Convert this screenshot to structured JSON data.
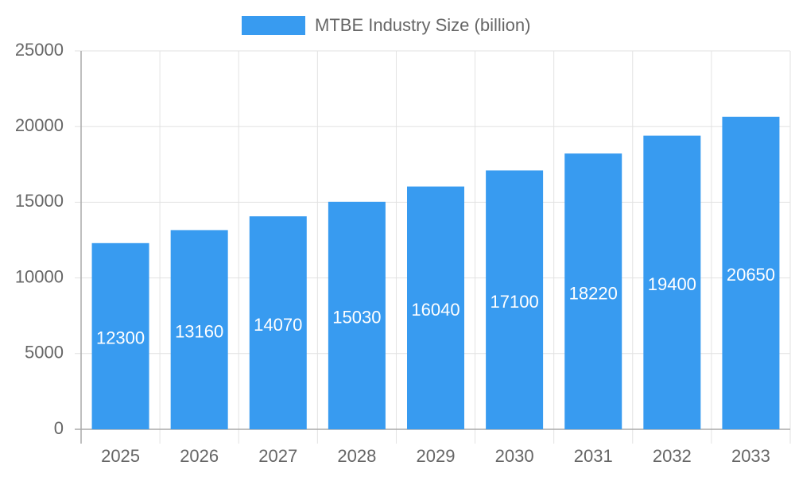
{
  "chart_data": {
    "type": "bar",
    "categories": [
      "2025",
      "2026",
      "2027",
      "2028",
      "2029",
      "2030",
      "2031",
      "2032",
      "2033"
    ],
    "series": [
      {
        "name": "MTBE Industry Size (billion)",
        "color": "#389bf0",
        "values": [
          12300,
          13160,
          14070,
          15030,
          16040,
          17100,
          18220,
          19400,
          20650
        ]
      }
    ],
    "ylim": [
      0,
      25000
    ],
    "yticks": [
      0,
      5000,
      10000,
      15000,
      20000,
      25000
    ],
    "grid": true,
    "legend": "top"
  }
}
